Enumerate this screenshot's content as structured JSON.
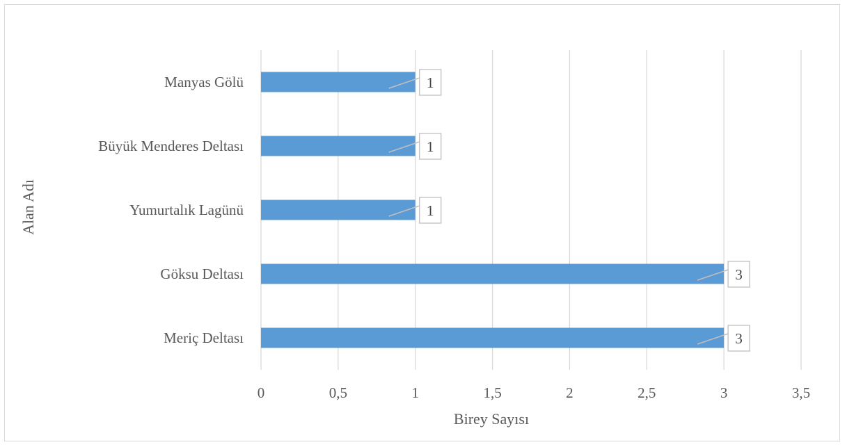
{
  "chart_data": {
    "type": "bar",
    "orientation": "horizontal",
    "categories": [
      "Manyas Gölü",
      "Büyük Menderes Deltası",
      "Yumurtalık Lagünü",
      "Göksu Deltası",
      "Meriç Deltası"
    ],
    "values": [
      1,
      1,
      1,
      3,
      3
    ],
    "data_labels": [
      "1",
      "1",
      "1",
      "3",
      "3"
    ],
    "xlabel": "Birey Sayısı",
    "ylabel": "Alan Adı",
    "xlim": [
      0,
      3.5
    ],
    "xticks": [
      0,
      0.5,
      1,
      1.5,
      2,
      2.5,
      3,
      3.5
    ],
    "xtick_labels": [
      "0",
      "0,5",
      "1",
      "1,5",
      "2",
      "2,5",
      "3",
      "3,5"
    ],
    "grid": true,
    "legend": "none",
    "bar_color": "#5b9bd5",
    "gridline_color": "#d9d9d9"
  }
}
